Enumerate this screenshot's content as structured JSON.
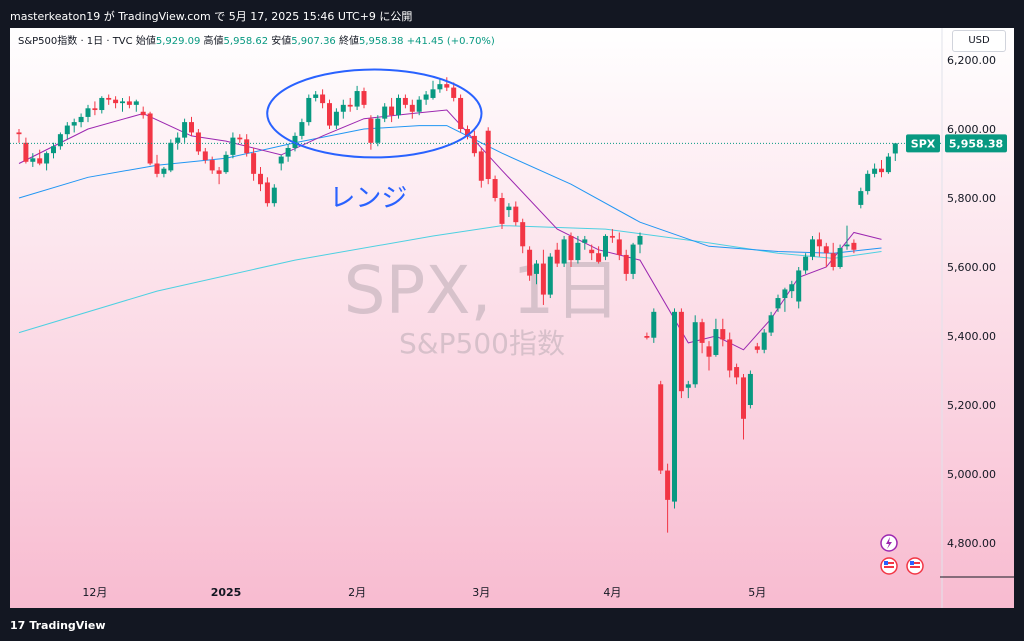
{
  "header": {
    "title": "masterkeaton19 が TradingView.com で 5月 17, 2025 15:46 UTC+9 に公開"
  },
  "legend": {
    "symbol": "S&P500指数 · 1日 · TVC",
    "open_label": "始値",
    "open": "5,929.09",
    "high_label": "高値",
    "high": "5,958.62",
    "low_label": "安値",
    "low": "5,907.36",
    "close_label": "終値",
    "close": "5,958.38",
    "change": "+41.45 (+0.70%)"
  },
  "currency_button": "USD",
  "watermark": {
    "line1": "SPX, 1日",
    "line2": "S&P500指数"
  },
  "annotation": {
    "text": "レンジ",
    "color": "#2962ff"
  },
  "last_price": {
    "symbol": "SPX",
    "value": "5,958.38",
    "color": "#089981"
  },
  "footer": {
    "brand": "TradingView",
    "mark": "17"
  },
  "colors": {
    "up": "#089981",
    "down": "#f23645",
    "ma_fast": "#9c27b0",
    "ma_mid": "#2196f3",
    "ma_slow": "#4dd0e1",
    "bg_top": "#ffffff",
    "bg_bottom": "#f8bbd0"
  },
  "icons": [
    "lightning-icon",
    "us-flag-icon",
    "us-flag-icon"
  ],
  "chart_data": {
    "type": "candlestick",
    "title": "",
    "ylim": [
      4700,
      6250
    ],
    "y_ticks": [
      4800,
      5000,
      5200,
      5400,
      5600,
      5800,
      6000,
      6200
    ],
    "y_tick_labels": [
      "4,800.00",
      "5,000.00",
      "5,200.00",
      "5,400.00",
      "5,600.00",
      "5,800.00",
      "6,000.00",
      "6,200.00"
    ],
    "x_ticks": [
      {
        "index": 11,
        "label": "12月",
        "bold": false
      },
      {
        "index": 30,
        "label": "2025",
        "bold": true
      },
      {
        "index": 49,
        "label": "2月",
        "bold": false
      },
      {
        "index": 67,
        "label": "3月",
        "bold": false
      },
      {
        "index": 86,
        "label": "4月",
        "bold": false
      },
      {
        "index": 107,
        "label": "5月",
        "bold": false
      }
    ],
    "candles": [
      [
        5990,
        6000,
        5960,
        5985
      ],
      [
        5960,
        5975,
        5900,
        5905
      ],
      [
        5905,
        5930,
        5890,
        5915
      ],
      [
        5915,
        5940,
        5895,
        5900
      ],
      [
        5900,
        5935,
        5880,
        5930
      ],
      [
        5930,
        5960,
        5915,
        5950
      ],
      [
        5950,
        5990,
        5940,
        5985
      ],
      [
        5985,
        6020,
        5970,
        6010
      ],
      [
        6010,
        6030,
        5990,
        6020
      ],
      [
        6020,
        6045,
        6005,
        6035
      ],
      [
        6035,
        6070,
        6020,
        6060
      ],
      [
        6060,
        6080,
        6040,
        6055
      ],
      [
        6055,
        6095,
        6045,
        6090
      ],
      [
        6090,
        6100,
        6070,
        6085
      ],
      [
        6085,
        6095,
        6060,
        6075
      ],
      [
        6075,
        6090,
        6050,
        6080
      ],
      [
        6080,
        6095,
        6060,
        6070
      ],
      [
        6070,
        6085,
        6050,
        6080
      ],
      [
        6050,
        6065,
        6030,
        6040
      ],
      [
        6045,
        6050,
        5895,
        5900
      ],
      [
        5900,
        5925,
        5860,
        5870
      ],
      [
        5870,
        5890,
        5860,
        5885
      ],
      [
        5880,
        5970,
        5875,
        5960
      ],
      [
        5960,
        5990,
        5940,
        5975
      ],
      [
        5975,
        6030,
        5960,
        6020
      ],
      [
        6020,
        6035,
        5980,
        5990
      ],
      [
        5990,
        6000,
        5925,
        5935
      ],
      [
        5935,
        5945,
        5900,
        5910
      ],
      [
        5910,
        5920,
        5870,
        5880
      ],
      [
        5880,
        5890,
        5840,
        5870
      ],
      [
        5875,
        5935,
        5870,
        5925
      ],
      [
        5925,
        5990,
        5915,
        5975
      ],
      [
        5975,
        5985,
        5960,
        5970
      ],
      [
        5970,
        5985,
        5920,
        5930
      ],
      [
        5930,
        5945,
        5850,
        5870
      ],
      [
        5870,
        5890,
        5820,
        5840
      ],
      [
        5845,
        5860,
        5775,
        5785
      ],
      [
        5785,
        5840,
        5775,
        5830
      ],
      [
        5900,
        5925,
        5880,
        5920
      ],
      [
        5920,
        5955,
        5905,
        5945
      ],
      [
        5945,
        5990,
        5935,
        5980
      ],
      [
        5980,
        6030,
        5970,
        6020
      ],
      [
        6020,
        6100,
        6010,
        6090
      ],
      [
        6090,
        6110,
        6080,
        6100
      ],
      [
        6100,
        6115,
        6060,
        6075
      ],
      [
        6075,
        6085,
        6000,
        6010
      ],
      [
        6010,
        6060,
        6000,
        6050
      ],
      [
        6050,
        6085,
        6030,
        6070
      ],
      [
        6070,
        6090,
        6050,
        6065
      ],
      [
        6065,
        6125,
        6055,
        6110
      ],
      [
        6110,
        6120,
        6060,
        6070
      ],
      [
        6030,
        6040,
        5940,
        5960
      ],
      [
        5960,
        6040,
        5950,
        6030
      ],
      [
        6030,
        6075,
        6020,
        6065
      ],
      [
        6065,
        6090,
        6020,
        6040
      ],
      [
        6040,
        6100,
        6030,
        6090
      ],
      [
        6090,
        6100,
        6060,
        6070
      ],
      [
        6070,
        6085,
        6030,
        6050
      ],
      [
        6050,
        6095,
        6040,
        6085
      ],
      [
        6085,
        6110,
        6070,
        6100
      ],
      [
        6090,
        6140,
        6085,
        6115
      ],
      [
        6115,
        6145,
        6105,
        6130
      ],
      [
        6130,
        6150,
        6110,
        6120
      ],
      [
        6120,
        6135,
        6080,
        6090
      ],
      [
        6090,
        6100,
        5990,
        6000
      ],
      [
        6000,
        6010,
        5970,
        5980
      ],
      [
        5980,
        5995,
        5920,
        5930
      ],
      [
        5935,
        5945,
        5830,
        5850
      ],
      [
        5995,
        6005,
        5840,
        5855
      ],
      [
        5855,
        5865,
        5790,
        5800
      ],
      [
        5800,
        5815,
        5710,
        5725
      ],
      [
        5765,
        5785,
        5745,
        5775
      ],
      [
        5775,
        5790,
        5720,
        5730
      ],
      [
        5730,
        5740,
        5640,
        5660
      ],
      [
        5650,
        5660,
        5560,
        5575
      ],
      [
        5580,
        5620,
        5550,
        5610
      ],
      [
        5610,
        5650,
        5490,
        5520
      ],
      [
        5520,
        5640,
        5510,
        5630
      ],
      [
        5650,
        5670,
        5600,
        5610
      ],
      [
        5610,
        5690,
        5600,
        5680
      ],
      [
        5690,
        5700,
        5600,
        5620
      ],
      [
        5620,
        5690,
        5610,
        5670
      ],
      [
        5670,
        5690,
        5650,
        5680
      ],
      [
        5650,
        5665,
        5620,
        5640
      ],
      [
        5640,
        5660,
        5610,
        5615
      ],
      [
        5630,
        5695,
        5620,
        5690
      ],
      [
        5690,
        5710,
        5670,
        5685
      ],
      [
        5680,
        5700,
        5620,
        5635
      ],
      [
        5635,
        5650,
        5560,
        5580
      ],
      [
        5580,
        5670,
        5565,
        5665
      ],
      [
        5665,
        5700,
        5640,
        5690
      ],
      [
        5400,
        5410,
        5390,
        5395
      ],
      [
        5395,
        5480,
        5380,
        5470
      ],
      [
        5260,
        5270,
        5000,
        5010
      ],
      [
        5010,
        5030,
        4830,
        4925
      ],
      [
        4920,
        5480,
        4900,
        5470
      ],
      [
        5470,
        5480,
        5220,
        5240
      ],
      [
        5250,
        5270,
        5220,
        5260
      ],
      [
        5260,
        5460,
        5250,
        5440
      ],
      [
        5440,
        5450,
        5350,
        5380
      ],
      [
        5370,
        5385,
        5300,
        5340
      ],
      [
        5345,
        5450,
        5340,
        5420
      ],
      [
        5420,
        5450,
        5370,
        5390
      ],
      [
        5390,
        5410,
        5280,
        5300
      ],
      [
        5310,
        5320,
        5260,
        5280
      ],
      [
        5280,
        5290,
        5100,
        5160
      ],
      [
        5200,
        5300,
        5190,
        5290
      ],
      [
        5370,
        5380,
        5350,
        5360
      ],
      [
        5360,
        5420,
        5350,
        5410
      ],
      [
        5410,
        5470,
        5400,
        5460
      ],
      [
        5480,
        5520,
        5470,
        5510
      ],
      [
        5510,
        5540,
        5470,
        5535
      ],
      [
        5530,
        5560,
        5510,
        5550
      ],
      [
        5500,
        5600,
        5480,
        5590
      ],
      [
        5590,
        5640,
        5580,
        5630
      ],
      [
        5630,
        5690,
        5620,
        5680
      ],
      [
        5680,
        5700,
        5630,
        5660
      ],
      [
        5660,
        5670,
        5600,
        5640
      ],
      [
        5640,
        5670,
        5590,
        5600
      ],
      [
        5600,
        5665,
        5595,
        5655
      ],
      [
        5660,
        5720,
        5650,
        5665
      ],
      [
        5670,
        5680,
        5640,
        5650
      ],
      [
        5780,
        5830,
        5770,
        5820
      ],
      [
        5820,
        5880,
        5810,
        5870
      ],
      [
        5870,
        5900,
        5860,
        5885
      ],
      [
        5885,
        5910,
        5860,
        5875
      ],
      [
        5875,
        5930,
        5870,
        5920
      ],
      [
        5929.09,
        5958.62,
        5907.36,
        5958.38
      ]
    ],
    "ma_fast": [
      [
        0,
        5900
      ],
      [
        10,
        6000
      ],
      [
        18,
        6045
      ],
      [
        25,
        5980
      ],
      [
        30,
        5965
      ],
      [
        38,
        5925
      ],
      [
        44,
        5980
      ],
      [
        50,
        6030
      ],
      [
        57,
        6045
      ],
      [
        62,
        6055
      ],
      [
        70,
        5880
      ],
      [
        78,
        5710
      ],
      [
        84,
        5650
      ],
      [
        90,
        5620
      ],
      [
        97,
        5380
      ],
      [
        101,
        5400
      ],
      [
        105,
        5360
      ],
      [
        109,
        5450
      ],
      [
        113,
        5570
      ],
      [
        117,
        5600
      ],
      [
        121,
        5700
      ],
      [
        125,
        5680
      ]
    ],
    "ma_mid": [
      [
        0,
        5800
      ],
      [
        10,
        5860
      ],
      [
        20,
        5895
      ],
      [
        30,
        5915
      ],
      [
        40,
        5960
      ],
      [
        50,
        6000
      ],
      [
        58,
        6010
      ],
      [
        62,
        6010
      ],
      [
        70,
        5930
      ],
      [
        80,
        5840
      ],
      [
        90,
        5730
      ],
      [
        100,
        5660
      ],
      [
        110,
        5645
      ],
      [
        118,
        5640
      ],
      [
        125,
        5655
      ]
    ],
    "ma_slow": [
      [
        0,
        5410
      ],
      [
        20,
        5530
      ],
      [
        40,
        5620
      ],
      [
        60,
        5690
      ],
      [
        70,
        5720
      ],
      [
        85,
        5710
      ],
      [
        100,
        5670
      ],
      [
        110,
        5640
      ],
      [
        118,
        5625
      ],
      [
        125,
        5645
      ]
    ],
    "range_box": {
      "label": "レンジ",
      "x_from": 38,
      "x_to": 65,
      "y_from": 5935,
      "y_to": 6155
    }
  }
}
